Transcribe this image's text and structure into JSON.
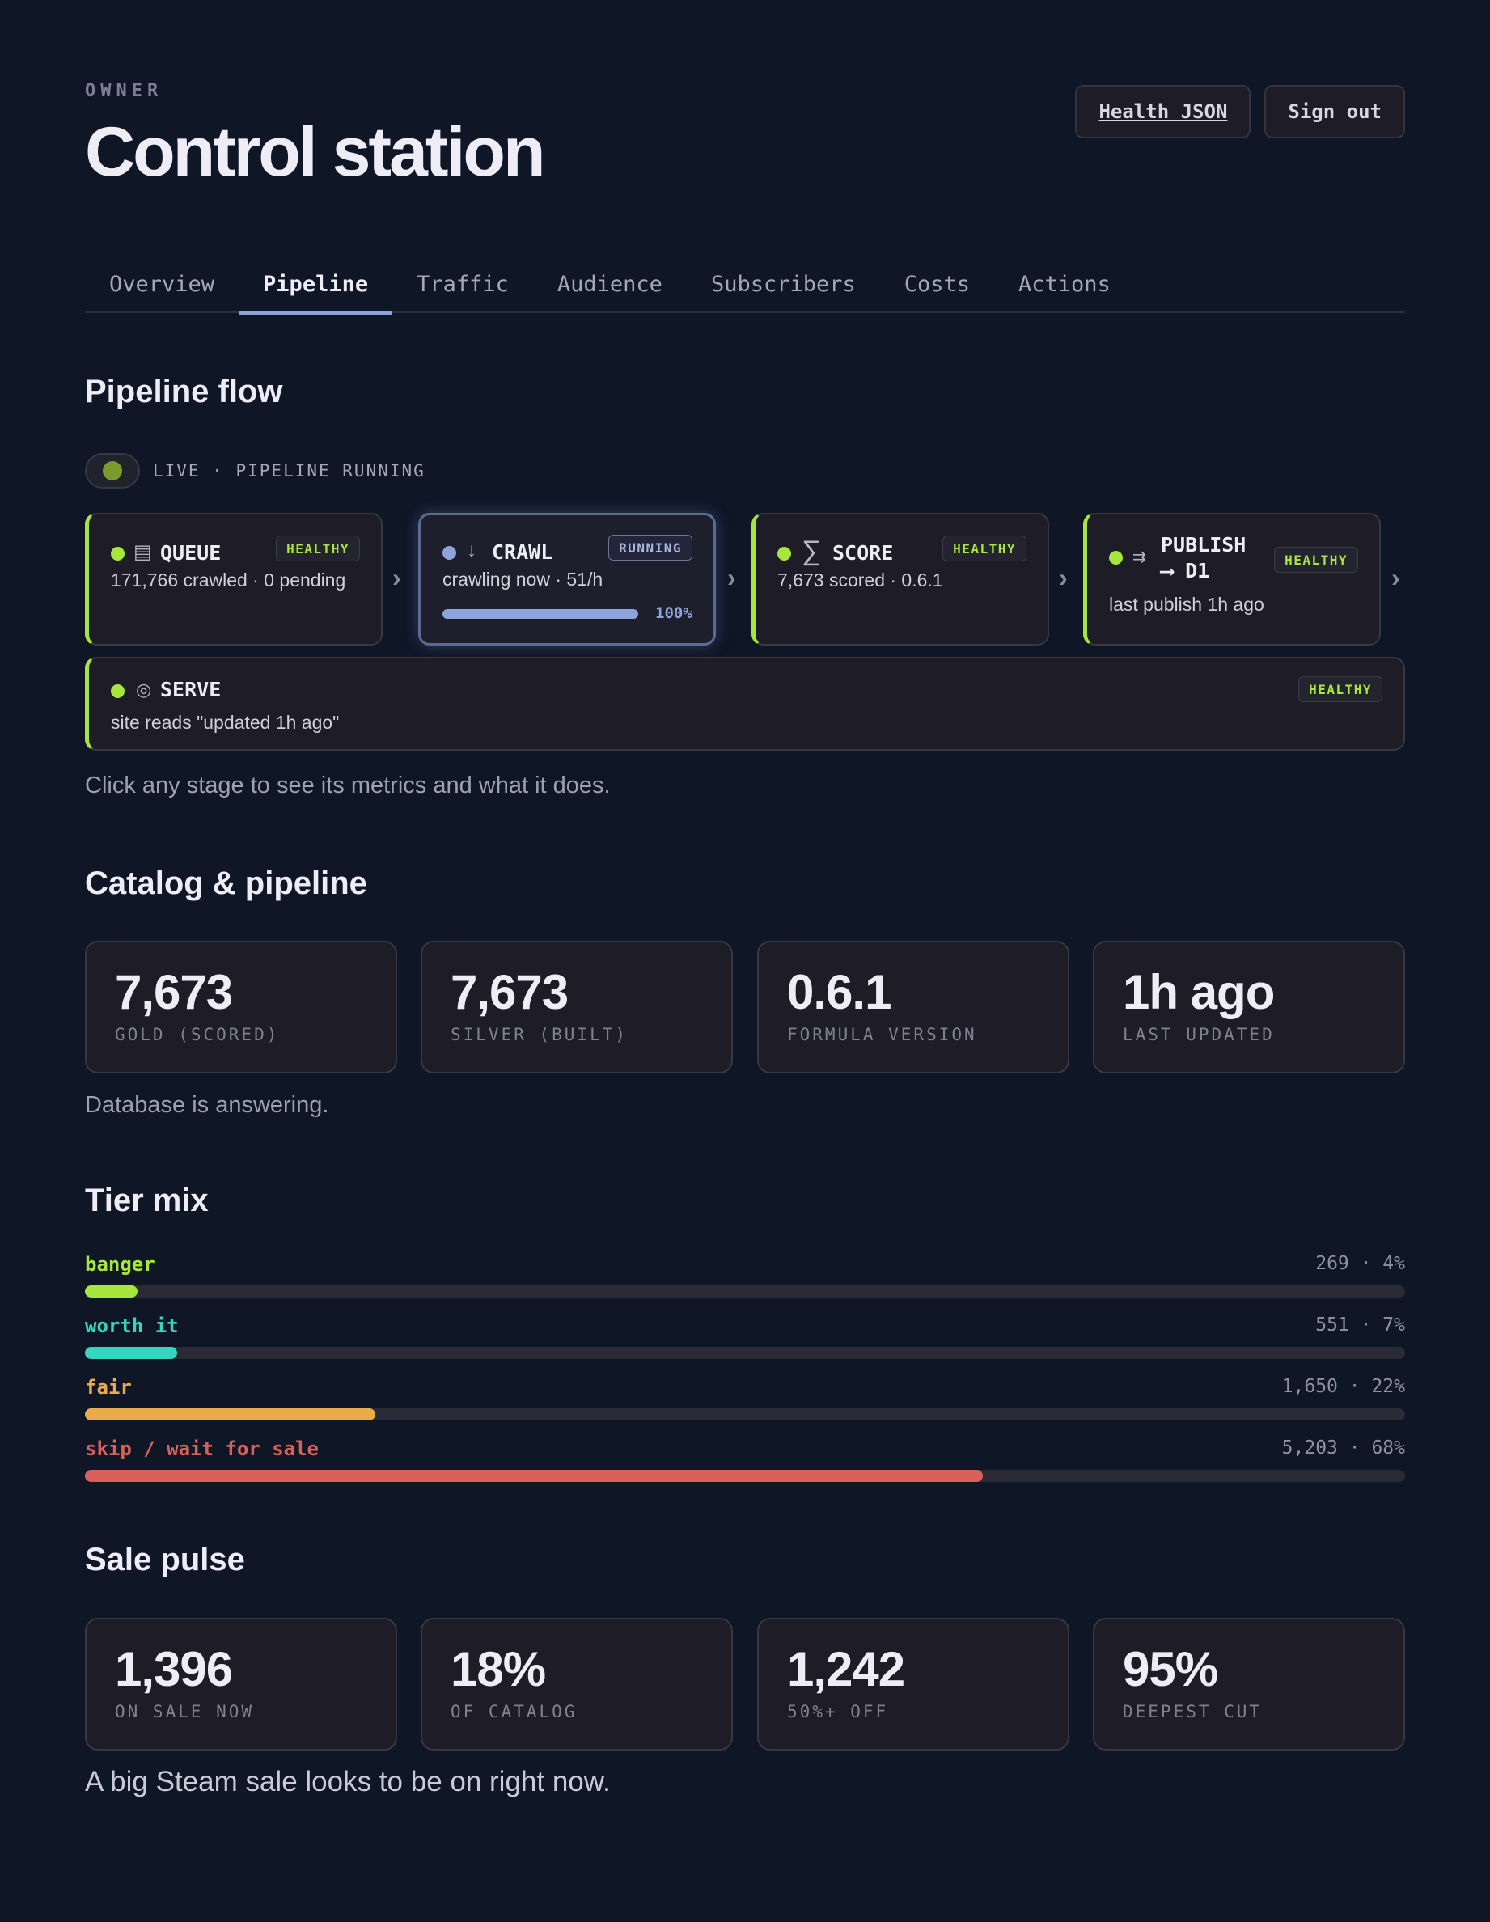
{
  "header": {
    "eyebrow": "OWNER",
    "title": "Control station",
    "health_button": "Health JSON",
    "signout_button": "Sign out"
  },
  "tabs": [
    {
      "label": "Overview"
    },
    {
      "label": "Pipeline",
      "active": true
    },
    {
      "label": "Traffic"
    },
    {
      "label": "Audience"
    },
    {
      "label": "Subscribers"
    },
    {
      "label": "Costs"
    },
    {
      "label": "Actions"
    }
  ],
  "pipeline": {
    "title": "Pipeline flow",
    "live_label": "LIVE · PIPELINE RUNNING",
    "stages": {
      "queue": {
        "icon": "queue-icon",
        "glyph": "▤",
        "name": "QUEUE",
        "status": "HEALTHY",
        "desc": "171,766 crawled · 0 pending"
      },
      "crawl": {
        "icon": "download-arrow-icon",
        "glyph": "↓",
        "name": "CRAWL",
        "status": "RUNNING",
        "desc": "crawling now · 51/h",
        "progress": 1.0,
        "progress_label": "100%"
      },
      "score": {
        "icon": "sigma-icon",
        "glyph": "∑",
        "name": "SCORE",
        "status": "HEALTHY",
        "desc": "7,673 scored · 0.6.1"
      },
      "publish": {
        "icon": "publish-arrows-icon",
        "glyph": "⇉",
        "name_line1": "PUBLISH",
        "name_line2": "⟶ D1",
        "status": "HEALTHY",
        "desc": "last publish 1h ago"
      },
      "serve": {
        "icon": "target-icon",
        "glyph": "◎",
        "name": "SERVE",
        "status": "HEALTHY",
        "desc": "site reads \"updated 1h ago\""
      }
    },
    "chevron": "›",
    "hint": "Click any stage to see its metrics and what it does."
  },
  "catalog": {
    "title": "Catalog & pipeline",
    "cards": [
      {
        "value": "7,673",
        "label": "GOLD (SCORED)"
      },
      {
        "value": "7,673",
        "label": "SILVER (BUILT)"
      },
      {
        "value": "0.6.1",
        "label": "FORMULA VERSION"
      },
      {
        "value": "1h ago",
        "label": "LAST UPDATED"
      }
    ],
    "note": "Database is answering."
  },
  "tiers": {
    "title": "Tier mix",
    "items": [
      {
        "name": "banger",
        "value": "269 · 4%",
        "fraction": 0.04,
        "color": "#a7e63c"
      },
      {
        "name": "worth it",
        "value": "551 · 7%",
        "fraction": 0.07,
        "color": "#35d6bd"
      },
      {
        "name": "fair",
        "value": "1,650 · 22%",
        "fraction": 0.22,
        "color": "#e8ad4a"
      },
      {
        "name": "skip / wait for sale",
        "value": "5,203 · 68%",
        "fraction": 0.68,
        "color": "#d9615a"
      }
    ]
  },
  "sale": {
    "title": "Sale pulse",
    "cards": [
      {
        "value": "1,396",
        "label": "ON SALE NOW"
      },
      {
        "value": "18%",
        "label": "OF CATALOG"
      },
      {
        "value": "1,242",
        "label": "50%+ OFF"
      },
      {
        "value": "95%",
        "label": "DEEPEST CUT"
      }
    ],
    "note": "A big Steam sale looks to be on right now."
  }
}
